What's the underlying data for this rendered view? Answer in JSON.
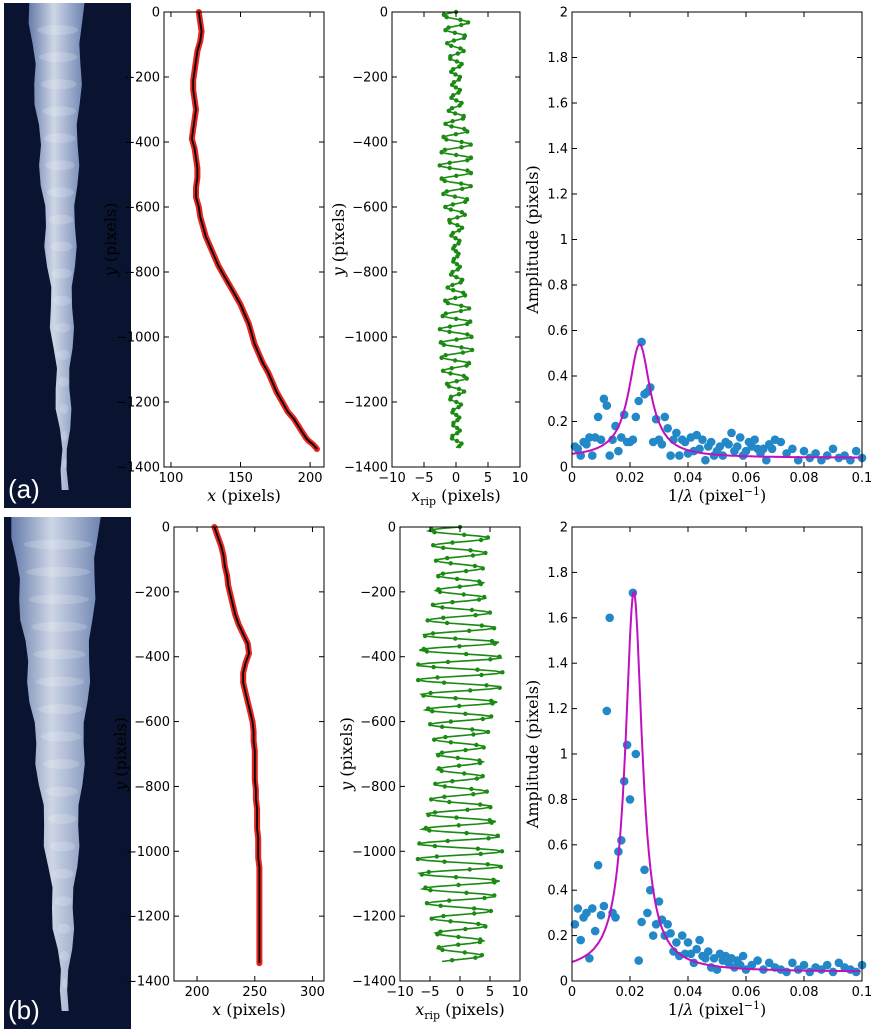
{
  "panel_letters": [
    "(a)",
    "(b)"
  ],
  "colors": {
    "outline_red": "#e8261f",
    "outline_black": "#000000",
    "ripple_green": "#1a8a12",
    "scatter_blue": "#2288c8",
    "fit_magenta": "#c010c0",
    "photo_bg": "#0a1430",
    "ice": "#c8d8f0"
  },
  "chart_data": [
    {
      "panel": "a",
      "type": "line",
      "id": "a-shape",
      "xlabel": "x (pixels)",
      "ylabel": "y (pixels)",
      "xlim": [
        95,
        210
      ],
      "ylim": [
        -1400,
        0
      ],
      "xticks": [
        100,
        150,
        200
      ],
      "yticks": [
        0,
        -200,
        -400,
        -600,
        -800,
        -1000,
        -1200,
        -1400
      ],
      "series": [
        {
          "x": [
            120,
            121,
            122,
            121,
            119,
            118,
            117,
            116,
            116,
            117,
            118,
            117,
            116,
            115,
            117,
            118,
            119,
            119,
            118,
            118,
            120,
            121,
            123,
            125,
            128,
            131,
            134,
            138,
            142,
            146,
            150,
            153,
            156,
            158,
            160,
            163,
            166,
            170,
            173,
            176,
            180,
            184,
            188,
            191,
            194,
            197,
            199,
            202,
            204,
            205
          ],
          "y": [
            0,
            -30,
            -60,
            -90,
            -120,
            -150,
            -180,
            -210,
            -240,
            -270,
            -300,
            -330,
            -360,
            -390,
            -420,
            -450,
            -480,
            -510,
            -540,
            -570,
            -600,
            -630,
            -660,
            -690,
            -720,
            -750,
            -780,
            -810,
            -840,
            -870,
            -900,
            -930,
            -960,
            -990,
            -1020,
            -1050,
            -1080,
            -1110,
            -1140,
            -1170,
            -1200,
            -1230,
            -1250,
            -1270,
            -1290,
            -1310,
            -1320,
            -1330,
            -1340,
            -1345
          ]
        }
      ]
    },
    {
      "panel": "a",
      "type": "line",
      "id": "a-ripple",
      "xlabel": "x_rip (pixels)",
      "ylabel": "y (pixels)",
      "xlim": [
        -10,
        10
      ],
      "ylim": [
        -1400,
        0
      ],
      "xticks": [
        -10,
        -5,
        0,
        5,
        10
      ],
      "yticks": [
        0,
        -200,
        -400,
        -600,
        -800,
        -1000,
        -1200,
        -1400
      ],
      "amplitude": 2.0,
      "wavelength": 42,
      "ymin": -1340
    },
    {
      "panel": "a",
      "type": "scatter",
      "id": "a-spectrum",
      "xlabel": "1/λ (pixel⁻¹)",
      "ylabel": "Amplitude (pixels)",
      "xlim": [
        0,
        0.1
      ],
      "ylim": [
        0,
        2
      ],
      "xticks": [
        0,
        0.02,
        0.04,
        0.06,
        0.08,
        0.1
      ],
      "yticks": [
        0,
        0.2,
        0.4,
        0.6,
        0.8,
        1,
        1.2,
        1.4,
        1.6,
        1.8,
        2
      ],
      "points": {
        "x": [
          0.001,
          0.002,
          0.003,
          0.004,
          0.005,
          0.006,
          0.007,
          0.008,
          0.009,
          0.01,
          0.011,
          0.012,
          0.013,
          0.014,
          0.015,
          0.016,
          0.017,
          0.018,
          0.019,
          0.02,
          0.021,
          0.022,
          0.023,
          0.024,
          0.025,
          0.026,
          0.027,
          0.028,
          0.029,
          0.03,
          0.031,
          0.032,
          0.033,
          0.034,
          0.035,
          0.036,
          0.037,
          0.038,
          0.039,
          0.04,
          0.041,
          0.042,
          0.043,
          0.044,
          0.045,
          0.046,
          0.047,
          0.048,
          0.049,
          0.05,
          0.051,
          0.052,
          0.053,
          0.054,
          0.055,
          0.056,
          0.057,
          0.058,
          0.059,
          0.06,
          0.061,
          0.062,
          0.063,
          0.064,
          0.065,
          0.066,
          0.067,
          0.068,
          0.069,
          0.07,
          0.072,
          0.074,
          0.076,
          0.078,
          0.08,
          0.082,
          0.084,
          0.086,
          0.088,
          0.09,
          0.092,
          0.094,
          0.096,
          0.098,
          0.1
        ],
        "y": [
          0.09,
          0.08,
          0.05,
          0.11,
          0.1,
          0.13,
          0.05,
          0.13,
          0.22,
          0.12,
          0.3,
          0.27,
          0.05,
          0.12,
          0.18,
          0.07,
          0.13,
          0.23,
          0.11,
          0.11,
          0.12,
          0.22,
          0.29,
          0.55,
          0.32,
          0.33,
          0.35,
          0.11,
          0.21,
          0.12,
          0.1,
          0.22,
          0.17,
          0.05,
          0.12,
          0.15,
          0.05,
          0.12,
          0.11,
          0.06,
          0.13,
          0.07,
          0.14,
          0.08,
          0.12,
          0.03,
          0.09,
          0.11,
          0.05,
          0.07,
          0.09,
          0.05,
          0.11,
          0.1,
          0.15,
          0.07,
          0.09,
          0.13,
          0.05,
          0.07,
          0.11,
          0.09,
          0.12,
          0.08,
          0.06,
          0.08,
          0.03,
          0.1,
          0.08,
          0.12,
          0.11,
          0.06,
          0.08,
          0.03,
          0.07,
          0.04,
          0.06,
          0.03,
          0.05,
          0.08,
          0.04,
          0.05,
          0.03,
          0.07,
          0.04
        ]
      },
      "fit": {
        "amplitude": 0.54,
        "x0": 0.0233,
        "gamma": 0.0045,
        "baseline": 0.04
      }
    },
    {
      "panel": "b",
      "type": "line",
      "id": "b-shape",
      "xlabel": "x (pixels)",
      "ylabel": "y (pixels)",
      "xlim": [
        180,
        310
      ],
      "ylim": [
        -1400,
        0
      ],
      "xticks": [
        200,
        250,
        300
      ],
      "yticks": [
        0,
        -200,
        -400,
        -600,
        -800,
        -1000,
        -1200,
        -1400
      ],
      "series": [
        {
          "x": [
            215,
            218,
            221,
            223,
            224,
            226,
            227,
            229,
            231,
            233,
            236,
            240,
            244,
            245,
            242,
            240,
            240,
            242,
            244,
            246,
            248,
            249,
            249,
            250,
            250,
            250,
            250,
            251,
            251,
            252,
            252,
            252,
            253,
            253,
            253,
            254,
            254,
            254,
            254,
            254,
            254,
            254,
            254,
            254,
            254
          ],
          "y": [
            0,
            -30,
            -60,
            -90,
            -120,
            -150,
            -180,
            -210,
            -240,
            -270,
            -300,
            -330,
            -360,
            -390,
            -420,
            -450,
            -480,
            -510,
            -540,
            -570,
            -600,
            -630,
            -660,
            -690,
            -720,
            -750,
            -780,
            -810,
            -840,
            -870,
            -900,
            -930,
            -960,
            -990,
            -1020,
            -1050,
            -1080,
            -1110,
            -1140,
            -1170,
            -1200,
            -1230,
            -1260,
            -1290,
            -1345
          ]
        }
      ]
    },
    {
      "panel": "b",
      "type": "line",
      "id": "b-ripple",
      "xlabel": "x_rip (pixels)",
      "ylabel": "y (pixels)",
      "xlim": [
        -10,
        10
      ],
      "ylim": [
        -1400,
        0
      ],
      "xticks": [
        -10,
        -5,
        0,
        5,
        10
      ],
      "yticks": [
        0,
        -200,
        -400,
        -600,
        -800,
        -1000,
        -1200,
        -1400
      ],
      "amplitude": 6.5,
      "wavelength": 46,
      "ymin": -1340
    },
    {
      "panel": "b",
      "type": "scatter",
      "id": "b-spectrum",
      "xlabel": "1/λ (pixel⁻¹)",
      "ylabel": "Amplitude (pixels)",
      "xlim": [
        0,
        0.1
      ],
      "ylim": [
        0,
        2
      ],
      "xticks": [
        0,
        0.02,
        0.04,
        0.06,
        0.08,
        0.1
      ],
      "yticks": [
        0,
        0.2,
        0.4,
        0.6,
        0.8,
        1,
        1.2,
        1.4,
        1.6,
        1.8,
        2
      ],
      "points": {
        "x": [
          0.001,
          0.002,
          0.003,
          0.004,
          0.005,
          0.006,
          0.007,
          0.008,
          0.009,
          0.01,
          0.011,
          0.012,
          0.013,
          0.014,
          0.015,
          0.016,
          0.017,
          0.018,
          0.019,
          0.02,
          0.021,
          0.022,
          0.023,
          0.024,
          0.025,
          0.026,
          0.027,
          0.028,
          0.029,
          0.03,
          0.031,
          0.032,
          0.033,
          0.034,
          0.035,
          0.036,
          0.037,
          0.038,
          0.039,
          0.04,
          0.041,
          0.042,
          0.043,
          0.044,
          0.045,
          0.046,
          0.047,
          0.048,
          0.049,
          0.05,
          0.051,
          0.052,
          0.053,
          0.054,
          0.055,
          0.056,
          0.057,
          0.058,
          0.059,
          0.06,
          0.062,
          0.064,
          0.066,
          0.068,
          0.07,
          0.072,
          0.074,
          0.076,
          0.078,
          0.08,
          0.082,
          0.084,
          0.086,
          0.088,
          0.09,
          0.092,
          0.094,
          0.096,
          0.098,
          0.1
        ],
        "y": [
          0.25,
          0.32,
          0.18,
          0.28,
          0.3,
          0.1,
          0.32,
          0.22,
          0.51,
          0.29,
          0.33,
          1.19,
          1.6,
          0.3,
          0.28,
          0.57,
          0.62,
          0.88,
          1.04,
          0.8,
          1.71,
          1.0,
          0.09,
          0.26,
          0.49,
          0.3,
          0.4,
          0.2,
          0.25,
          0.35,
          0.27,
          0.2,
          0.25,
          0.21,
          0.13,
          0.17,
          0.11,
          0.2,
          0.12,
          0.17,
          0.12,
          0.08,
          0.14,
          0.18,
          0.11,
          0.1,
          0.13,
          0.06,
          0.1,
          0.05,
          0.12,
          0.09,
          0.11,
          0.08,
          0.1,
          0.06,
          0.09,
          0.07,
          0.11,
          0.05,
          0.07,
          0.09,
          0.05,
          0.08,
          0.06,
          0.05,
          0.04,
          0.08,
          0.05,
          0.07,
          0.04,
          0.06,
          0.05,
          0.07,
          0.04,
          0.08,
          0.06,
          0.05,
          0.04,
          0.07
        ]
      },
      "fit": {
        "amplitude": 1.72,
        "x0": 0.0213,
        "gamma": 0.0035,
        "baseline": 0.04
      }
    }
  ]
}
